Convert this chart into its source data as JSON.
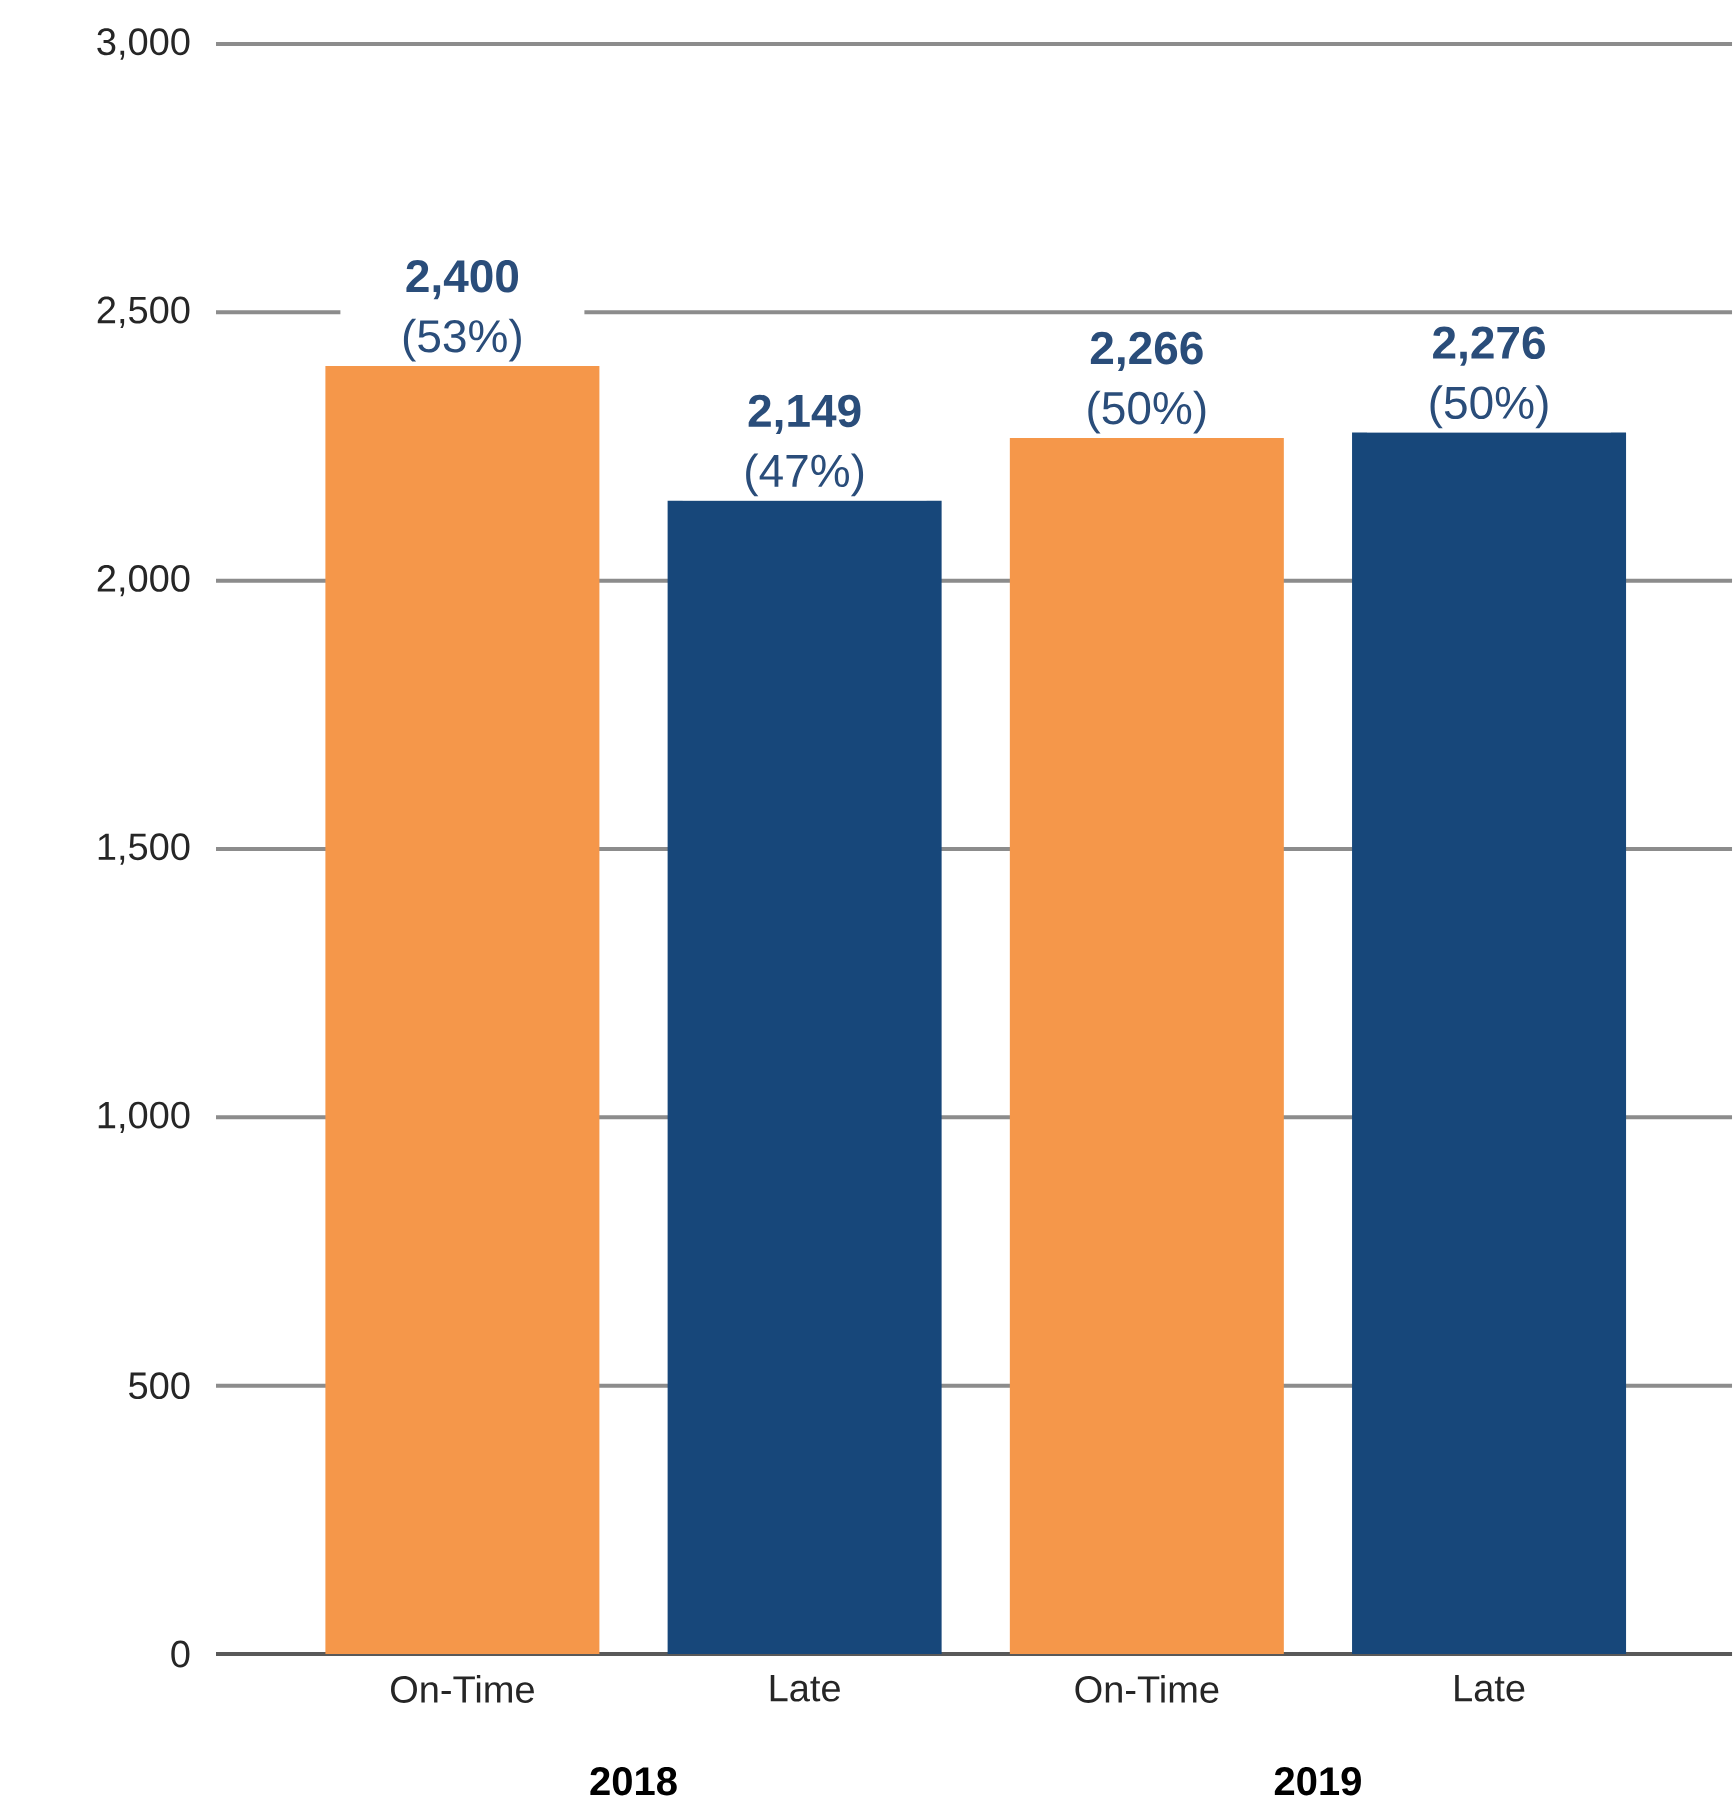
{
  "chart_data": {
    "type": "bar",
    "categories": [
      "On-Time",
      "Late",
      "On-Time",
      "Late"
    ],
    "values": [
      2400,
      2149,
      2266,
      2276
    ],
    "colors": [
      "#f5974a",
      "#17477a",
      "#f5974a",
      "#17477a"
    ],
    "value_labels": [
      "**2,400** (53%)",
      "**2,149** (47%)",
      "**2,266** (50%)",
      "**2,276** (50%)"
    ],
    "annotations": [
      "2018",
      "2019"
    ],
    "ylim": [
      0,
      3000
    ],
    "yticks": [
      {
        "value": 0,
        "label": "0"
      },
      {
        "value": 500,
        "label": "500"
      },
      {
        "value": 1000,
        "label": "1,000"
      },
      {
        "value": 1500,
        "label": "1,500"
      },
      {
        "value": 2000,
        "label": "2,000"
      },
      {
        "value": 2500,
        "label": "2,500"
      },
      {
        "value": 3000,
        "label": "3,000"
      }
    ],
    "grid": "y"
  }
}
